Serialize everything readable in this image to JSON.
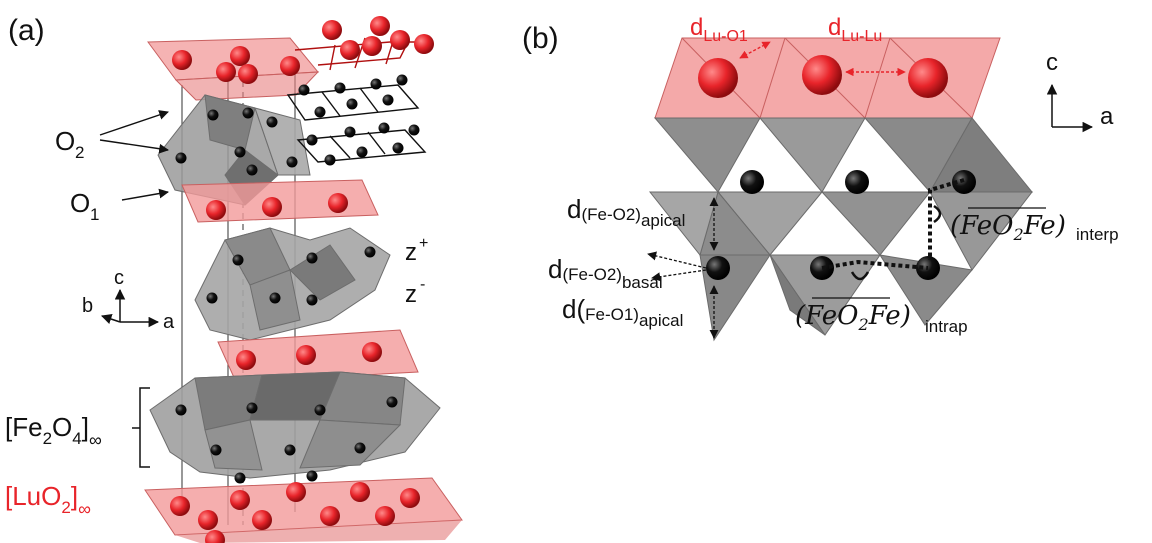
{
  "panel_a": {
    "label": "(a)",
    "o2": "O",
    "o2_sub": "2",
    "o1": "O",
    "o1_sub": "1",
    "z_plus": "z",
    "z_plus_sup": "+",
    "z_minus": "z",
    "z_minus_sup": "-",
    "axis_c": "c",
    "axis_b": "b",
    "axis_a": "a",
    "fe_layer": {
      "open": "[Fe",
      "sub1": "2",
      "mid": "O",
      "sub2": "4",
      "close": "]",
      "inf": "∞"
    },
    "lu_layer": {
      "open": "[LuO",
      "sub": "2",
      "close": "]",
      "inf": "∞"
    }
  },
  "panel_b": {
    "label": "(b)",
    "d_lu_o1": {
      "d": "d",
      "sub": "Lu-O1"
    },
    "d_lu_lu": {
      "d": "d",
      "sub": "Lu-Lu"
    },
    "axis_c": "c",
    "axis_a": "a",
    "d_fe_o2_apical": {
      "d": "d",
      "sub": "(Fe-O2)",
      "sub2": "apical"
    },
    "d_fe_o2_basal": {
      "d": "d",
      "sub": "(Fe-O2)",
      "sub2": "basal"
    },
    "d_fe_o1_apical": {
      "d": "d(",
      "sub": "Fe-O1)",
      "sub2": "apical"
    },
    "angle_interp": {
      "open": "(",
      "fe1": "Fe",
      "o": "O",
      "o_sub": "2",
      "fe2": "Fe",
      "close": ")",
      "tag": "interp"
    },
    "angle_intrap": {
      "open": "(",
      "fe1": "Fe",
      "o": "O",
      "o_sub": "2",
      "fe2": "Fe",
      "close": ")",
      "tag": "intrap"
    }
  },
  "colors": {
    "lu": "#e8242a",
    "fe": "#000000",
    "octahedra": "#8c8c8c",
    "lu_polyhedra": "#f29a9a"
  }
}
